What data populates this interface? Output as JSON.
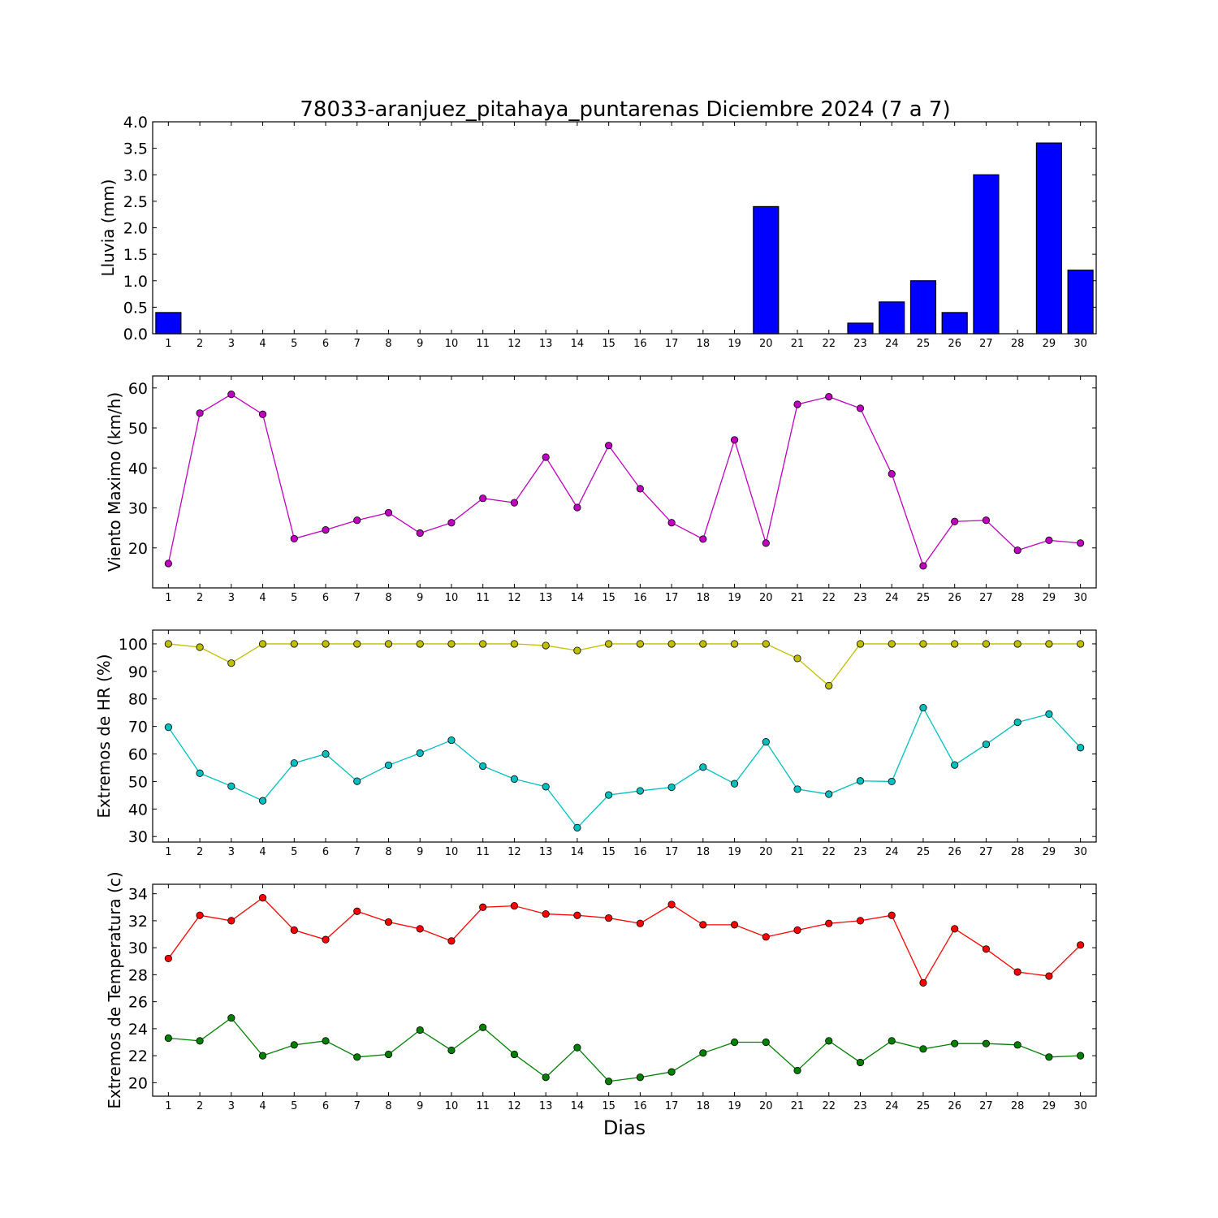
{
  "title": "78033-aranjuez_pitahaya_puntarenas Diciembre 2024  (7 a 7)",
  "xlabel": "Dias",
  "days": [
    1,
    2,
    3,
    4,
    5,
    6,
    7,
    8,
    9,
    10,
    11,
    12,
    13,
    14,
    15,
    16,
    17,
    18,
    19,
    20,
    21,
    22,
    23,
    24,
    25,
    26,
    27,
    28,
    29,
    30
  ],
  "chart_data": [
    {
      "type": "bar",
      "id": "rain",
      "ylabel": "Lluvia (mm)",
      "ylim": [
        0,
        4.0
      ],
      "yticks": [
        0.0,
        0.5,
        1.0,
        1.5,
        2.0,
        2.5,
        3.0,
        3.5,
        4.0
      ],
      "ytick_labels": [
        "0.0",
        "0.5",
        "1.0",
        "1.5",
        "2.0",
        "2.5",
        "3.0",
        "3.5",
        "4.0"
      ],
      "x": [
        1,
        2,
        3,
        4,
        5,
        6,
        7,
        8,
        9,
        10,
        11,
        12,
        13,
        14,
        15,
        16,
        17,
        18,
        19,
        20,
        21,
        22,
        23,
        24,
        25,
        26,
        27,
        28,
        29,
        30
      ],
      "series": [
        {
          "color": "#0000ff",
          "values": [
            0.4,
            0,
            0,
            0,
            0,
            0,
            0,
            0,
            0,
            0,
            0,
            0,
            0,
            0,
            0,
            0,
            0,
            0,
            0,
            2.4,
            0,
            0,
            0.2,
            0.6,
            1.0,
            0.4,
            3.0,
            0,
            3.6,
            1.2
          ]
        }
      ]
    },
    {
      "type": "line",
      "id": "wind",
      "ylabel": "Viento Maximo (km/h)",
      "ylim": [
        10,
        63
      ],
      "yticks": [
        20,
        30,
        40,
        50,
        60
      ],
      "ytick_labels": [
        "20",
        "30",
        "40",
        "50",
        "60"
      ],
      "x": [
        1,
        2,
        3,
        4,
        5,
        6,
        7,
        8,
        9,
        10,
        11,
        12,
        13,
        14,
        15,
        16,
        17,
        18,
        19,
        20,
        21,
        22,
        23,
        24,
        25,
        26,
        27,
        28,
        29,
        30
      ],
      "series": [
        {
          "color": "#bf00bf",
          "values": [
            16.1,
            53.7,
            58.4,
            53.4,
            22.3,
            24.5,
            26.9,
            28.8,
            23.7,
            26.3,
            32.4,
            31.3,
            42.7,
            30.1,
            45.6,
            34.8,
            26.3,
            22.2,
            47.0,
            21.2,
            55.9,
            57.8,
            54.9,
            38.5,
            15.5,
            26.6,
            26.9,
            19.4,
            21.9,
            21.2
          ]
        }
      ]
    },
    {
      "type": "line",
      "id": "humidity",
      "ylabel": "Extremos de HR (%)",
      "ylim": [
        28,
        105
      ],
      "yticks": [
        30,
        40,
        50,
        60,
        70,
        80,
        90,
        100
      ],
      "ytick_labels": [
        "30",
        "40",
        "50",
        "60",
        "70",
        "80",
        "90",
        "100"
      ],
      "x": [
        1,
        2,
        3,
        4,
        5,
        6,
        7,
        8,
        9,
        10,
        11,
        12,
        13,
        14,
        15,
        16,
        17,
        18,
        19,
        20,
        21,
        22,
        23,
        24,
        25,
        26,
        27,
        28,
        29,
        30
      ],
      "series": [
        {
          "color": "#bfbf00",
          "values": [
            100,
            98.8,
            93,
            100,
            100,
            100,
            100,
            100,
            100,
            100,
            100,
            100,
            99.4,
            97.6,
            100,
            100,
            100,
            100,
            100,
            100,
            94.7,
            84.8,
            100,
            100,
            100,
            100,
            100,
            100,
            100,
            100
          ]
        },
        {
          "color": "#00bfbf",
          "values": [
            69.7,
            53.0,
            48.3,
            43.0,
            56.7,
            60.0,
            50.1,
            55.9,
            60.3,
            65.0,
            55.6,
            50.9,
            48.1,
            33.2,
            45.1,
            46.6,
            47.9,
            55.2,
            49.2,
            64.4,
            47.2,
            45.4,
            50.2,
            50.0,
            76.8,
            56.0,
            63.5,
            71.5,
            74.5,
            62.3
          ]
        }
      ]
    },
    {
      "type": "line",
      "id": "temperature",
      "ylabel": "Extremos de Temperatura (c)",
      "ylim": [
        19,
        34.7
      ],
      "yticks": [
        20,
        22,
        24,
        26,
        28,
        30,
        32,
        34
      ],
      "ytick_labels": [
        "20",
        "22",
        "24",
        "26",
        "28",
        "30",
        "32",
        "34"
      ],
      "x": [
        1,
        2,
        3,
        4,
        5,
        6,
        7,
        8,
        9,
        10,
        11,
        12,
        13,
        14,
        15,
        16,
        17,
        18,
        19,
        20,
        21,
        22,
        23,
        24,
        25,
        26,
        27,
        28,
        29,
        30
      ],
      "series": [
        {
          "color": "#ff0000",
          "values": [
            29.2,
            32.4,
            32.0,
            33.7,
            31.3,
            30.6,
            32.7,
            31.9,
            31.4,
            30.5,
            33.0,
            33.1,
            32.5,
            32.4,
            32.2,
            31.8,
            33.2,
            31.7,
            31.7,
            30.8,
            31.3,
            31.8,
            32.0,
            32.4,
            27.4,
            31.4,
            29.9,
            28.2,
            27.9,
            30.2
          ]
        },
        {
          "color": "#008000",
          "values": [
            23.3,
            23.1,
            24.8,
            22.0,
            22.8,
            23.1,
            21.9,
            22.1,
            23.9,
            22.4,
            24.1,
            22.1,
            20.4,
            22.6,
            20.1,
            20.4,
            20.8,
            22.2,
            23.0,
            23.0,
            20.9,
            23.1,
            21.5,
            23.1,
            22.5,
            22.9,
            22.9,
            22.8,
            21.9,
            22.0
          ]
        }
      ]
    }
  ]
}
